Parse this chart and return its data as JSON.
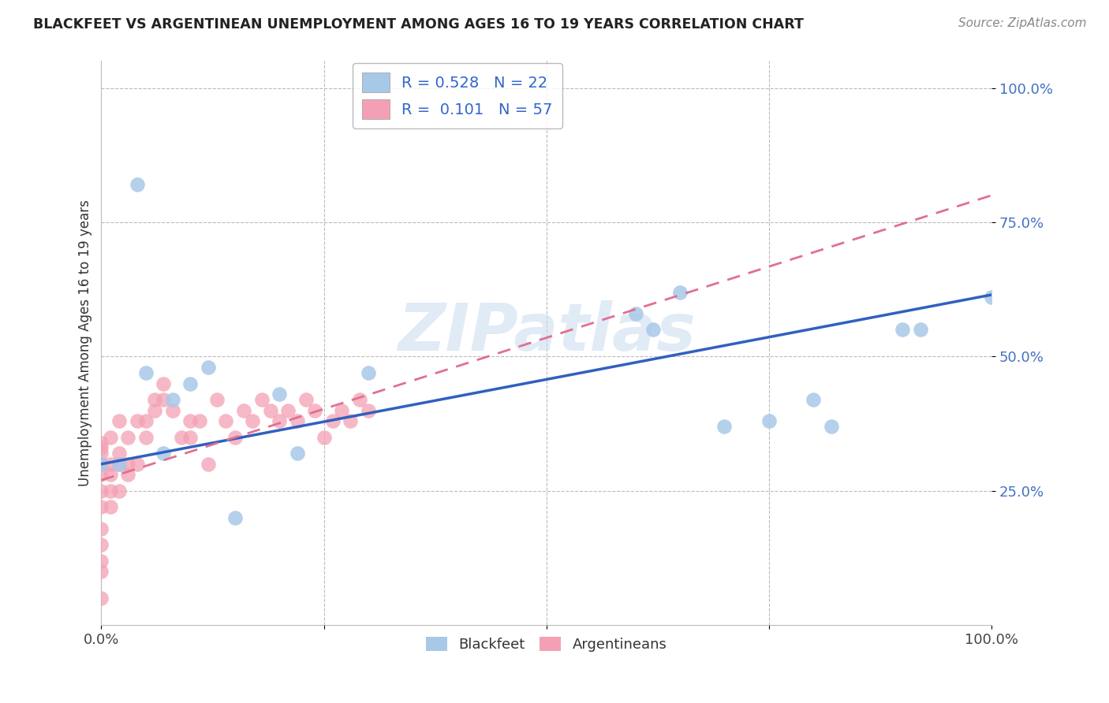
{
  "title": "BLACKFEET VS ARGENTINEAN UNEMPLOYMENT AMONG AGES 16 TO 19 YEARS CORRELATION CHART",
  "source": "Source: ZipAtlas.com",
  "ylabel": "Unemployment Among Ages 16 to 19 years",
  "blackfeet_r": 0.528,
  "blackfeet_n": 22,
  "argentinean_r": 0.101,
  "argentinean_n": 57,
  "blackfeet_color": "#A8C8E8",
  "argentinean_color": "#F4A0B4",
  "blackfeet_line_color": "#3060C0",
  "argentinean_line_color": "#E07090",
  "watermark_text": "ZIPatlas",
  "watermark_color": "#C8DCF0",
  "ytick_positions": [
    0.25,
    0.5,
    0.75,
    1.0
  ],
  "ytick_labels": [
    "25.0%",
    "50.0%",
    "75.0%",
    "100.0%"
  ],
  "xtick_positions": [
    0.0,
    0.25,
    0.5,
    0.75,
    1.0
  ],
  "xticklabels": [
    "0.0%",
    "",
    "",
    "",
    "100.0%"
  ],
  "xlim": [
    0.0,
    1.0
  ],
  "ylim": [
    0.0,
    1.05
  ],
  "bf_x": [
    0.0,
    0.02,
    0.05,
    0.07,
    0.08,
    0.1,
    0.12,
    0.15,
    0.2,
    0.22,
    0.3,
    0.6,
    0.62,
    0.65,
    0.7,
    0.75,
    0.8,
    0.82,
    0.9,
    0.92,
    1.0,
    0.04
  ],
  "bf_y": [
    0.3,
    0.3,
    0.47,
    0.32,
    0.42,
    0.45,
    0.48,
    0.2,
    0.43,
    0.32,
    0.47,
    0.58,
    0.55,
    0.62,
    0.37,
    0.38,
    0.42,
    0.37,
    0.55,
    0.55,
    0.61,
    0.82
  ],
  "arg_x": [
    0.0,
    0.0,
    0.0,
    0.0,
    0.0,
    0.0,
    0.0,
    0.0,
    0.0,
    0.0,
    0.0,
    0.0,
    0.0,
    0.01,
    0.01,
    0.01,
    0.01,
    0.01,
    0.02,
    0.02,
    0.02,
    0.02,
    0.03,
    0.03,
    0.03,
    0.04,
    0.04,
    0.05,
    0.05,
    0.06,
    0.06,
    0.07,
    0.07,
    0.08,
    0.09,
    0.1,
    0.1,
    0.11,
    0.12,
    0.13,
    0.14,
    0.15,
    0.16,
    0.17,
    0.18,
    0.19,
    0.2,
    0.21,
    0.22,
    0.23,
    0.24,
    0.25,
    0.26,
    0.27,
    0.28,
    0.29,
    0.3
  ],
  "arg_y": [
    0.3,
    0.32,
    0.28,
    0.25,
    0.22,
    0.18,
    0.15,
    0.12,
    0.1,
    0.05,
    0.33,
    0.34,
    0.3,
    0.3,
    0.28,
    0.25,
    0.22,
    0.35,
    0.3,
    0.25,
    0.32,
    0.38,
    0.28,
    0.3,
    0.35,
    0.3,
    0.38,
    0.38,
    0.35,
    0.42,
    0.4,
    0.45,
    0.42,
    0.4,
    0.35,
    0.38,
    0.35,
    0.38,
    0.3,
    0.42,
    0.38,
    0.35,
    0.4,
    0.38,
    0.42,
    0.4,
    0.38,
    0.4,
    0.38,
    0.42,
    0.4,
    0.35,
    0.38,
    0.4,
    0.38,
    0.42,
    0.4
  ],
  "bf_line_x0": 0.0,
  "bf_line_x1": 1.0,
  "bf_line_y0": 0.3,
  "bf_line_y1": 0.615,
  "arg_line_x0": 0.0,
  "arg_line_x1": 1.0,
  "arg_line_y0": 0.27,
  "arg_line_y1": 0.8
}
